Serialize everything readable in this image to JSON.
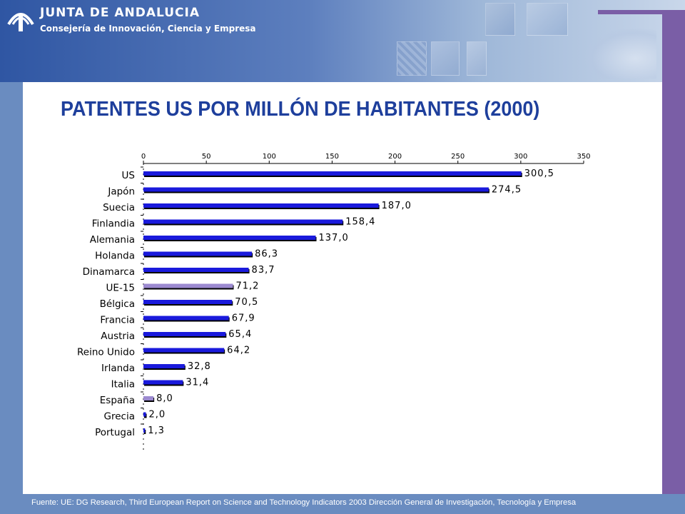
{
  "header": {
    "org_name": "JUNTA DE ANDALUCIA",
    "org_sub": "Consejería de Innovación, Ciencia  y Empresa"
  },
  "colors": {
    "bar": "#1a1adc",
    "bar_highlight": "#9c8ad0",
    "shadow": "#000000",
    "title": "#1e3f9c",
    "band": "#7a5ea6"
  },
  "icons": [
    "junta-andalucia-logo-icon"
  ],
  "chart_data": {
    "type": "bar",
    "orientation": "horizontal",
    "title": "PATENTES US POR MILLÓN DE HABITANTES (2000)",
    "categories": [
      "US",
      "Japón",
      "Suecia",
      "Finlandia",
      "Alemania",
      "Holanda",
      "Dinamarca",
      "UE-15",
      "Bélgica",
      "Francia",
      "Austria",
      "Reino Unido",
      "Irlanda",
      "Italia",
      "España",
      "Grecia",
      "Portugal"
    ],
    "values": [
      300.5,
      274.5,
      187.0,
      158.4,
      137.0,
      86.3,
      83.7,
      71.2,
      70.5,
      67.9,
      65.4,
      64.2,
      32.8,
      31.4,
      8.0,
      2.0,
      1.3
    ],
    "value_labels": [
      "300,5",
      "274,5",
      "187,0",
      "158,4",
      "137,0",
      "86,3",
      "83,7",
      "71,2",
      "70,5",
      "67,9",
      "65,4",
      "64,2",
      "32,8",
      "31,4",
      "8,0",
      "2,0",
      "1,3"
    ],
    "highlighted": [
      "UE-15",
      "España"
    ],
    "xlim": [
      0,
      350
    ],
    "xticks": [
      "0",
      "50",
      "100",
      "150",
      "200",
      "250",
      "300",
      "350"
    ],
    "xaxis_position": "top",
    "grid": false,
    "legend": "none"
  },
  "footer": {
    "source": "Fuente: UE: DG Research, Third European Report on Science and Technology Indicators 2003 Dirección General  de Investigación, Tecnología y Empresa"
  }
}
